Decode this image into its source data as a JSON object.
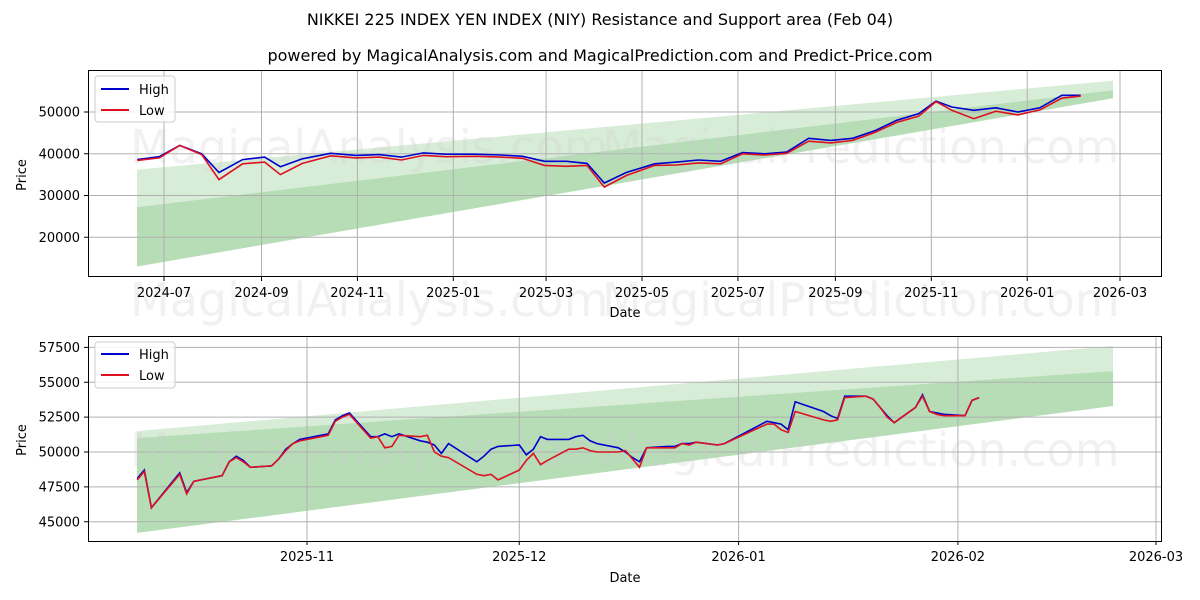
{
  "header": {
    "title": "NIKKEI 225 INDEX YEN INDEX (NIY) Resistance and Support area (Feb 04)",
    "subtitle": "powered by MagicalAnalysis.com and MagicalPrediction.com and Predict-Price.com"
  },
  "watermarks": [
    "MagicalAnalysis.com",
    "MagicalPrediction.com"
  ],
  "colors": {
    "high": "#0000cc",
    "low": "#dd1122",
    "band": "#8fca8f",
    "grid": "#b0b0b0"
  },
  "chart_data": [
    {
      "type": "line",
      "title": "Full history",
      "xlabel": "Date",
      "ylabel": "Price",
      "grid": true,
      "legend_position": "upper left",
      "legend": [
        "High",
        "Low"
      ],
      "x_ticks": [
        "2024-07",
        "2024-09",
        "2024-11",
        "2025-01",
        "2025-03",
        "2025-05",
        "2025-07",
        "2025-09",
        "2025-11",
        "2026-01",
        "2026-03"
      ],
      "y_ticks": [
        20000,
        30000,
        40000,
        50000
      ],
      "ylim": [
        10000,
        59000
      ],
      "x": [
        "2024-06-14",
        "2024-06-28",
        "2024-07-11",
        "2024-07-25",
        "2024-08-05",
        "2024-08-20",
        "2024-09-03",
        "2024-09-13",
        "2024-09-27",
        "2024-10-15",
        "2024-10-31",
        "2024-11-15",
        "2024-11-29",
        "2024-12-13",
        "2024-12-27",
        "2025-01-15",
        "2025-01-31",
        "2025-02-14",
        "2025-02-28",
        "2025-03-14",
        "2025-03-27",
        "2025-04-07",
        "2025-04-21",
        "2025-05-09",
        "2025-05-23",
        "2025-06-06",
        "2025-06-20",
        "2025-07-04",
        "2025-07-18",
        "2025-08-01",
        "2025-08-15",
        "2025-08-29",
        "2025-09-12",
        "2025-09-26",
        "2025-10-10",
        "2025-10-24",
        "2025-11-04",
        "2025-11-14",
        "2025-11-28",
        "2025-12-12",
        "2025-12-26",
        "2026-01-09",
        "2026-01-23",
        "2026-02-04"
      ],
      "series": [
        {
          "name": "High",
          "values": [
            38600,
            39300,
            42000,
            40000,
            35500,
            38600,
            39200,
            36900,
            38800,
            40100,
            39600,
            39800,
            39200,
            40200,
            39900,
            39900,
            39700,
            39400,
            38200,
            38200,
            37700,
            33000,
            35500,
            37600,
            38000,
            38500,
            38200,
            40300,
            40000,
            40400,
            43700,
            43200,
            43700,
            45500,
            48000,
            49600,
            52600,
            51200,
            50400,
            51000,
            50000,
            51000,
            54000,
            54000
          ]
        },
        {
          "name": "Low",
          "values": [
            38400,
            39000,
            42000,
            39800,
            33800,
            37600,
            38000,
            35000,
            37700,
            39500,
            39000,
            39200,
            38500,
            39600,
            39300,
            39400,
            39200,
            38900,
            37200,
            37000,
            37200,
            32000,
            34800,
            37200,
            37300,
            37800,
            37600,
            40000,
            39700,
            40100,
            43000,
            42600,
            43200,
            45100,
            47500,
            49000,
            52500,
            50400,
            48400,
            50200,
            49300,
            50500,
            53300,
            53800
          ]
        },
        {
          "name": "Resistance band upper",
          "values": [
            36200,
            57500
          ]
        },
        {
          "name": "Resistance band lower (light)",
          "values": [
            27200,
            55200
          ]
        },
        {
          "name": "Support band lower",
          "values": [
            13000,
            53300
          ]
        }
      ]
    },
    {
      "type": "line",
      "title": "Recent detail",
      "xlabel": "Date",
      "ylabel": "Price",
      "grid": true,
      "legend_position": "upper left",
      "legend": [
        "High",
        "Low"
      ],
      "x_ticks": [
        "2025-11",
        "2025-12",
        "2026-01",
        "2026-02",
        "2026-03"
      ],
      "y_ticks": [
        45000,
        47500,
        50000,
        52500,
        55000,
        57500
      ],
      "ylim": [
        43500,
        58300
      ],
      "x": [
        "2025-10-08",
        "2025-10-09",
        "2025-10-10",
        "2025-10-14",
        "2025-10-15",
        "2025-10-16",
        "2025-10-17",
        "2025-10-20",
        "2025-10-21",
        "2025-10-22",
        "2025-10-23",
        "2025-10-24",
        "2025-10-27",
        "2025-10-28",
        "2025-10-29",
        "2025-10-30",
        "2025-10-31",
        "2025-11-04",
        "2025-11-05",
        "2025-11-06",
        "2025-11-07",
        "2025-11-10",
        "2025-11-11",
        "2025-11-12",
        "2025-11-13",
        "2025-11-14",
        "2025-11-17",
        "2025-11-18",
        "2025-11-19",
        "2025-11-20",
        "2025-11-21",
        "2025-11-25",
        "2025-11-26",
        "2025-11-27",
        "2025-11-28",
        "2025-12-01",
        "2025-12-02",
        "2025-12-03",
        "2025-12-04",
        "2025-12-05",
        "2025-12-08",
        "2025-12-09",
        "2025-12-10",
        "2025-12-11",
        "2025-12-12",
        "2025-12-15",
        "2025-12-16",
        "2025-12-17",
        "2025-12-18",
        "2025-12-19",
        "2025-12-22",
        "2025-12-23",
        "2025-12-24",
        "2025-12-25",
        "2025-12-26",
        "2025-12-29",
        "2025-12-30",
        "2026-01-05",
        "2026-01-06",
        "2026-01-07",
        "2026-01-08",
        "2026-01-09",
        "2026-01-13",
        "2026-01-14",
        "2026-01-15",
        "2026-01-16",
        "2026-01-19",
        "2026-01-20",
        "2026-01-21",
        "2026-01-22",
        "2026-01-23",
        "2026-01-26",
        "2026-01-27",
        "2026-01-28",
        "2026-01-29",
        "2026-01-30",
        "2026-02-02",
        "2026-02-03",
        "2026-02-04"
      ],
      "series": [
        {
          "name": "High",
          "values": [
            48100,
            48700,
            46000,
            48500,
            47100,
            47900,
            48000,
            48300,
            49300,
            49700,
            49400,
            48900,
            49000,
            49500,
            50200,
            50600,
            50900,
            51300,
            52300,
            52600,
            52800,
            51100,
            51100,
            51300,
            51100,
            51300,
            50800,
            50700,
            50500,
            49900,
            50600,
            49300,
            49700,
            50200,
            50400,
            50500,
            49800,
            50200,
            51100,
            50900,
            50900,
            51100,
            51200,
            50800,
            50600,
            50300,
            50000,
            49600,
            49300,
            50300,
            50400,
            50400,
            50600,
            50600,
            50700,
            50500,
            50600,
            52200,
            52100,
            52000,
            51600,
            53600,
            52900,
            52600,
            52400,
            54000,
            54000,
            53800,
            53200,
            52600,
            52100,
            53200,
            54100,
            52900,
            52800,
            52700,
            52600,
            53700,
            53900
          ]
        },
        {
          "name": "Low",
          "values": [
            48000,
            48600,
            46000,
            48400,
            47000,
            47900,
            48000,
            48300,
            49300,
            49600,
            49300,
            48900,
            49000,
            49500,
            50100,
            50600,
            50800,
            51200,
            52200,
            52500,
            52700,
            51000,
            51100,
            50300,
            50400,
            51200,
            51100,
            51200,
            50000,
            49700,
            49600,
            48400,
            48300,
            48400,
            48000,
            48700,
            49400,
            49900,
            49100,
            49400,
            50200,
            50200,
            50300,
            50100,
            50000,
            50000,
            50100,
            49500,
            48900,
            50300,
            50300,
            50300,
            50600,
            50500,
            50700,
            50500,
            50600,
            52000,
            52000,
            51600,
            51400,
            52900,
            52300,
            52200,
            52300,
            53900,
            54000,
            53800,
            53200,
            52500,
            52100,
            53200,
            54000,
            52900,
            52700,
            52600,
            52600,
            53700,
            53900
          ]
        },
        {
          "name": "Resistance band upper (light)",
          "values": [
            51500,
            57600
          ]
        },
        {
          "name": "Resistance band lower",
          "values": [
            51000,
            55800
          ]
        },
        {
          "name": "Support band lower",
          "values": [
            44200,
            53300
          ]
        }
      ]
    }
  ]
}
